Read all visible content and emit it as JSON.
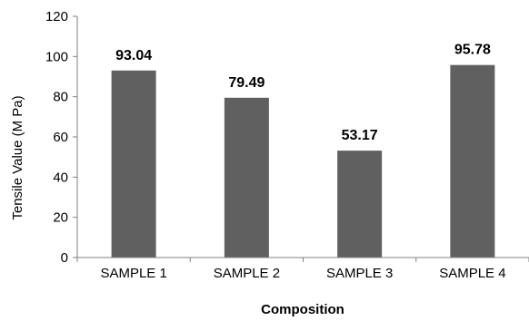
{
  "chart_data": {
    "type": "bar",
    "title": "",
    "xlabel": "Composition",
    "ylabel": "Tensile Value (M Pa)",
    "categories": [
      "SAMPLE 1",
      "SAMPLE 2",
      "SAMPLE 3",
      "SAMPLE 4"
    ],
    "values": [
      93.04,
      79.49,
      53.17,
      95.78
    ],
    "data_labels": [
      "93.04",
      "79.49",
      "53.17",
      "95.78"
    ],
    "ylim": [
      0,
      120
    ],
    "yticks": [
      0,
      20,
      40,
      60,
      80,
      100,
      120
    ],
    "grid": false,
    "legend": "none",
    "colors": {
      "bar": "#606060",
      "axis": "#808080",
      "text": "#000000"
    }
  }
}
